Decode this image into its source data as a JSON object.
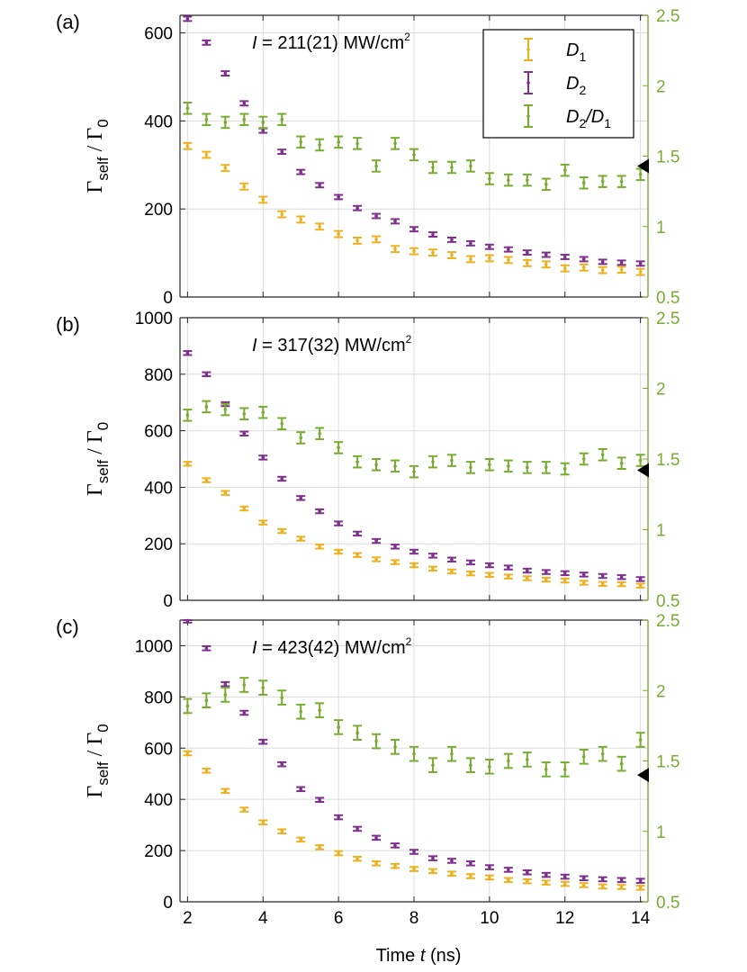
{
  "figure": {
    "xlabel": "Time",
    "xlabel_var": "t",
    "xlabel_unit": "(ns)",
    "ylabel_main": "Γ",
    "ylabel_sub_self": "self",
    "ylabel_sep": " / Γ",
    "ylabel_sub_0": "0",
    "colors": {
      "D1": "#EDB120",
      "D2": "#7E2F8E",
      "ratio": "#77AC30",
      "grid": "#dcdcdc",
      "axis": "#262626"
    }
  },
  "legend": {
    "placement": "top-right of panel (a)",
    "entries": [
      {
        "key": "D1",
        "main": "D",
        "sub": "1",
        "tail": "",
        "tailsub": ""
      },
      {
        "key": "D2",
        "main": "D",
        "sub": "2",
        "tail": "",
        "tailsub": ""
      },
      {
        "key": "ratio",
        "main": "D",
        "sub": "2",
        "tail": "/D",
        "tailsub": "1"
      }
    ]
  },
  "chart_data": [
    {
      "type": "scatter",
      "panel_label": "(a)",
      "intensity_prefix": "I",
      "intensity_text": " = 211(21) MW/cm",
      "intensity_sup": "2",
      "x": [
        2,
        2.5,
        3,
        3.5,
        4,
        4.5,
        5,
        5.5,
        6,
        6.5,
        7,
        7.5,
        8,
        8.5,
        9,
        9.5,
        10,
        10.5,
        11,
        11.5,
        12,
        12.5,
        13,
        13.5,
        14
      ],
      "xlim": [
        1.8,
        14.2
      ],
      "xticks": [
        2,
        4,
        6,
        8,
        10,
        12,
        14
      ],
      "ylim_left": [
        0,
        640
      ],
      "yticks_left": [
        0,
        200,
        400,
        600
      ],
      "ylim_right": [
        0.5,
        2.5
      ],
      "yticks_right": [
        "0.5",
        "1",
        "1.5",
        "2",
        "2.5"
      ],
      "series": [
        {
          "name": "D1",
          "axis": "left",
          "err": 7,
          "values": [
            343,
            323,
            293,
            251,
            221,
            188,
            176,
            160,
            143,
            128,
            131,
            109,
            104,
            101,
            95,
            86,
            88,
            84,
            77,
            74,
            65,
            67,
            61,
            62,
            57
          ]
        },
        {
          "name": "D2",
          "axis": "left",
          "err": 5,
          "values": [
            632,
            578,
            508,
            440,
            378,
            330,
            284,
            254,
            227,
            202,
            184,
            172,
            154,
            142,
            130,
            122,
            114,
            108,
            101,
            96,
            91,
            86,
            80,
            78,
            76
          ]
        },
        {
          "name": "D2/D1",
          "axis": "right",
          "err": 0.04,
          "values": [
            1.84,
            1.76,
            1.74,
            1.76,
            1.74,
            1.76,
            1.6,
            1.58,
            1.6,
            1.59,
            1.43,
            1.59,
            1.51,
            1.42,
            1.42,
            1.43,
            1.34,
            1.33,
            1.33,
            1.3,
            1.4,
            1.31,
            1.32,
            1.32,
            1.37
          ]
        }
      ],
      "marker": {
        "axis": "right",
        "value": 1.43
      }
    },
    {
      "type": "scatter",
      "panel_label": "(b)",
      "intensity_prefix": "I",
      "intensity_text": " = 317(32) MW/cm",
      "intensity_sup": "2",
      "x": [
        2,
        2.5,
        3,
        3.5,
        4,
        4.5,
        5,
        5.5,
        6,
        6.5,
        7,
        7.5,
        8,
        8.5,
        9,
        9.5,
        10,
        10.5,
        11,
        11.5,
        12,
        12.5,
        13,
        13.5,
        14
      ],
      "xlim": [
        1.8,
        14.2
      ],
      "xticks": [
        2,
        4,
        6,
        8,
        10,
        12,
        14
      ],
      "ylim_left": [
        0,
        1000
      ],
      "yticks_left": [
        0,
        200,
        400,
        600,
        800,
        1000
      ],
      "ylim_right": [
        0.5,
        2.5
      ],
      "yticks_right": [
        "0.5",
        "1",
        "1.5",
        "2",
        "2.5"
      ],
      "series": [
        {
          "name": "D1",
          "axis": "left",
          "err": 7,
          "values": [
            483,
            425,
            380,
            325,
            275,
            245,
            218,
            190,
            172,
            160,
            145,
            135,
            124,
            112,
            102,
            95,
            90,
            84,
            78,
            73,
            70,
            62,
            58,
            57,
            52
          ]
        },
        {
          "name": "D2",
          "axis": "left",
          "err": 7,
          "values": [
            875,
            800,
            694,
            590,
            505,
            430,
            362,
            315,
            272,
            236,
            210,
            190,
            172,
            158,
            144,
            134,
            124,
            116,
            105,
            100,
            96,
            91,
            86,
            82,
            75
          ]
        },
        {
          "name": "D2/D1",
          "axis": "right",
          "err": 0.04,
          "values": [
            1.81,
            1.87,
            1.85,
            1.82,
            1.83,
            1.75,
            1.65,
            1.68,
            1.58,
            1.48,
            1.46,
            1.45,
            1.41,
            1.48,
            1.49,
            1.44,
            1.46,
            1.45,
            1.44,
            1.44,
            1.43,
            1.5,
            1.53,
            1.47,
            1.49
          ]
        }
      ],
      "marker": {
        "axis": "right",
        "value": 1.42
      }
    },
    {
      "type": "scatter",
      "panel_label": "(c)",
      "intensity_prefix": "I",
      "intensity_text": " = 423(42) MW/cm",
      "intensity_sup": "2",
      "x": [
        2,
        2.5,
        3,
        3.5,
        4,
        4.5,
        5,
        5.5,
        6,
        6.5,
        7,
        7.5,
        8,
        8.5,
        9,
        9.5,
        10,
        10.5,
        11,
        11.5,
        12,
        12.5,
        13,
        13.5,
        14
      ],
      "xlim": [
        1.8,
        14.2
      ],
      "xticks": [
        2,
        4,
        6,
        8,
        10,
        12,
        14
      ],
      "ylim_left": [
        0,
        1100
      ],
      "yticks_left": [
        0,
        200,
        400,
        600,
        800,
        1000
      ],
      "ylim_right": [
        0.5,
        2.5
      ],
      "yticks_right": [
        "0.5",
        "1",
        "1.5",
        "2",
        "2.5"
      ],
      "series": [
        {
          "name": "D1",
          "axis": "left",
          "err": 8,
          "values": [
            580,
            512,
            433,
            360,
            310,
            275,
            243,
            213,
            190,
            168,
            150,
            140,
            128,
            120,
            110,
            100,
            95,
            85,
            80,
            75,
            70,
            65,
            60,
            58,
            55
          ]
        },
        {
          "name": "D2",
          "axis": "left",
          "err": 8,
          "values": [
            1098,
            990,
            850,
            738,
            625,
            537,
            440,
            398,
            330,
            285,
            250,
            220,
            195,
            170,
            160,
            150,
            135,
            125,
            115,
            105,
            98,
            92,
            88,
            85,
            82
          ]
        },
        {
          "name": "D2/D1",
          "axis": "right",
          "err": 0.05,
          "values": [
            1.89,
            1.93,
            1.97,
            2.04,
            2.02,
            1.95,
            1.85,
            1.86,
            1.74,
            1.7,
            1.64,
            1.6,
            1.55,
            1.47,
            1.55,
            1.47,
            1.46,
            1.5,
            1.51,
            1.44,
            1.44,
            1.53,
            1.55,
            1.48,
            1.65
          ]
        }
      ],
      "marker": {
        "axis": "right",
        "value": 1.4
      }
    }
  ]
}
